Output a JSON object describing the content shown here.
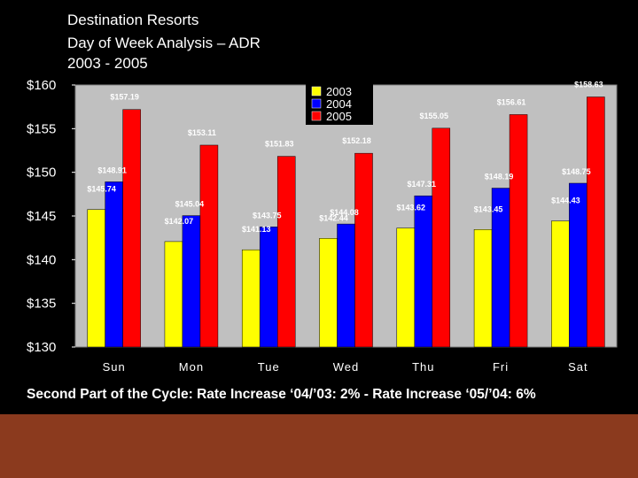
{
  "slide": {
    "title_lines": [
      "Destination Resorts",
      "Day of Week Analysis – ADR",
      "2003 - 2005"
    ],
    "caption": "Second Part of the Cycle: Rate Increase ‘04/’03: 2% - Rate Increase ‘05/’04: 6%"
  },
  "colors": {
    "background": "#000000",
    "footer": "#8b3a1e",
    "series_2003": "#ffff00",
    "series_2004": "#0000ff",
    "series_2005": "#ff0000",
    "text": "#ffffff"
  },
  "chart_data": {
    "type": "bar",
    "title": "Destination Resorts Day of Week Analysis – ADR 2003 - 2005",
    "xlabel": "",
    "ylabel": "",
    "ylim": [
      130,
      160
    ],
    "yticks": [
      130,
      135,
      140,
      145,
      150,
      155,
      160
    ],
    "ytick_labels": [
      "$130",
      "$135",
      "$140",
      "$145",
      "$150",
      "$155",
      "$160"
    ],
    "categories": [
      "Sun",
      "Mon",
      "Tue",
      "Wed",
      "Thu",
      "Fri",
      "Sat"
    ],
    "legend_position": "top-center",
    "series": [
      {
        "name": "2003",
        "color": "#ffff00",
        "values": [
          145.74,
          142.07,
          141.13,
          142.44,
          143.62,
          143.45,
          144.43
        ],
        "labels": [
          "$145.74",
          "$142.07",
          "$141.13",
          "$142.44",
          "$143.62",
          "$143.45",
          "$144.43"
        ]
      },
      {
        "name": "2004",
        "color": "#0000ff",
        "values": [
          148.91,
          145.04,
          143.75,
          144.08,
          147.31,
          148.19,
          148.75
        ],
        "labels": [
          "$148.91",
          "$145.04",
          "$143.75",
          "$144.08",
          "$147.31",
          "$148.19",
          "$148.75"
        ]
      },
      {
        "name": "2005",
        "color": "#ff0000",
        "values": [
          157.19,
          153.11,
          151.83,
          152.18,
          155.05,
          156.61,
          158.63
        ],
        "labels": [
          "$157.19",
          "$153.11",
          "$151.83",
          "$152.18",
          "$155.05",
          "$156.61",
          "$158.63"
        ]
      }
    ]
  }
}
